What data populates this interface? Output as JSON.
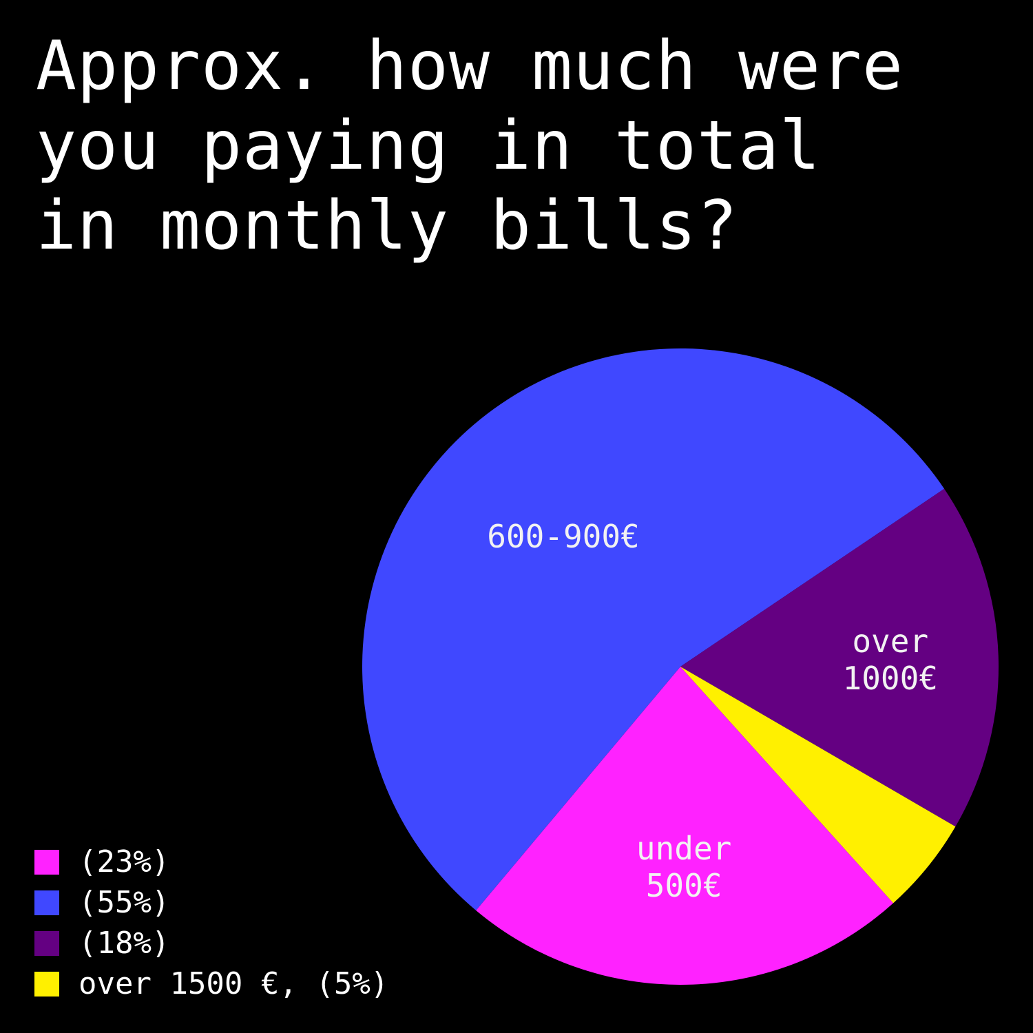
{
  "title": "Approx. how much were\nyou paying in total\nin monthly bills?",
  "chart_data": {
    "type": "pie",
    "title": "Approx. how much were you paying in total in monthly bills?",
    "slices": [
      {
        "label": "under\n500€",
        "value": 23,
        "color": "#ff22ff",
        "legend": "(23%)"
      },
      {
        "label": "600-900€",
        "value": 55,
        "color": "#4048ff",
        "legend": "(55%)"
      },
      {
        "label": "over\n1000€",
        "value": 18,
        "color": "#640082",
        "legend": "(18%)"
      },
      {
        "label": "",
        "value": 5,
        "color": "#fff000",
        "legend": "over 1500 €, (5%)"
      }
    ],
    "legend_position": "bottom-left"
  }
}
